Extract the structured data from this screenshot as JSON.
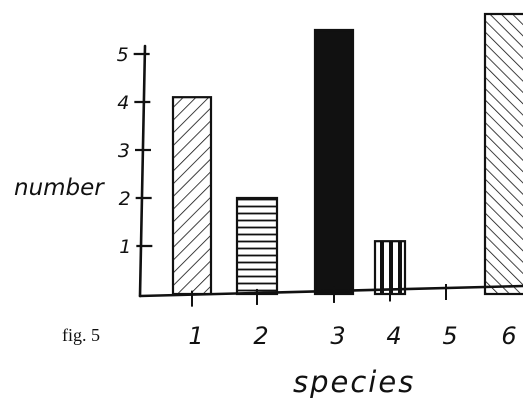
{
  "chart_data": {
    "type": "bar",
    "caption": "fig. 5",
    "xlabel": "species",
    "ylabel": "number",
    "categories": [
      "1",
      "2",
      "3",
      "4",
      "5",
      "6"
    ],
    "values": [
      4.1,
      2.0,
      5.5,
      1.1,
      0,
      6.0
    ],
    "yticks": [
      "1",
      "2",
      "3",
      "4",
      "5"
    ],
    "ylim": [
      0,
      6
    ],
    "fills": [
      "diagonal-hatch",
      "horizontal-hatch",
      "solid",
      "vertical-hatch",
      "none",
      "diagonal-hatch-reverse"
    ],
    "grid": false,
    "legend": "none"
  }
}
